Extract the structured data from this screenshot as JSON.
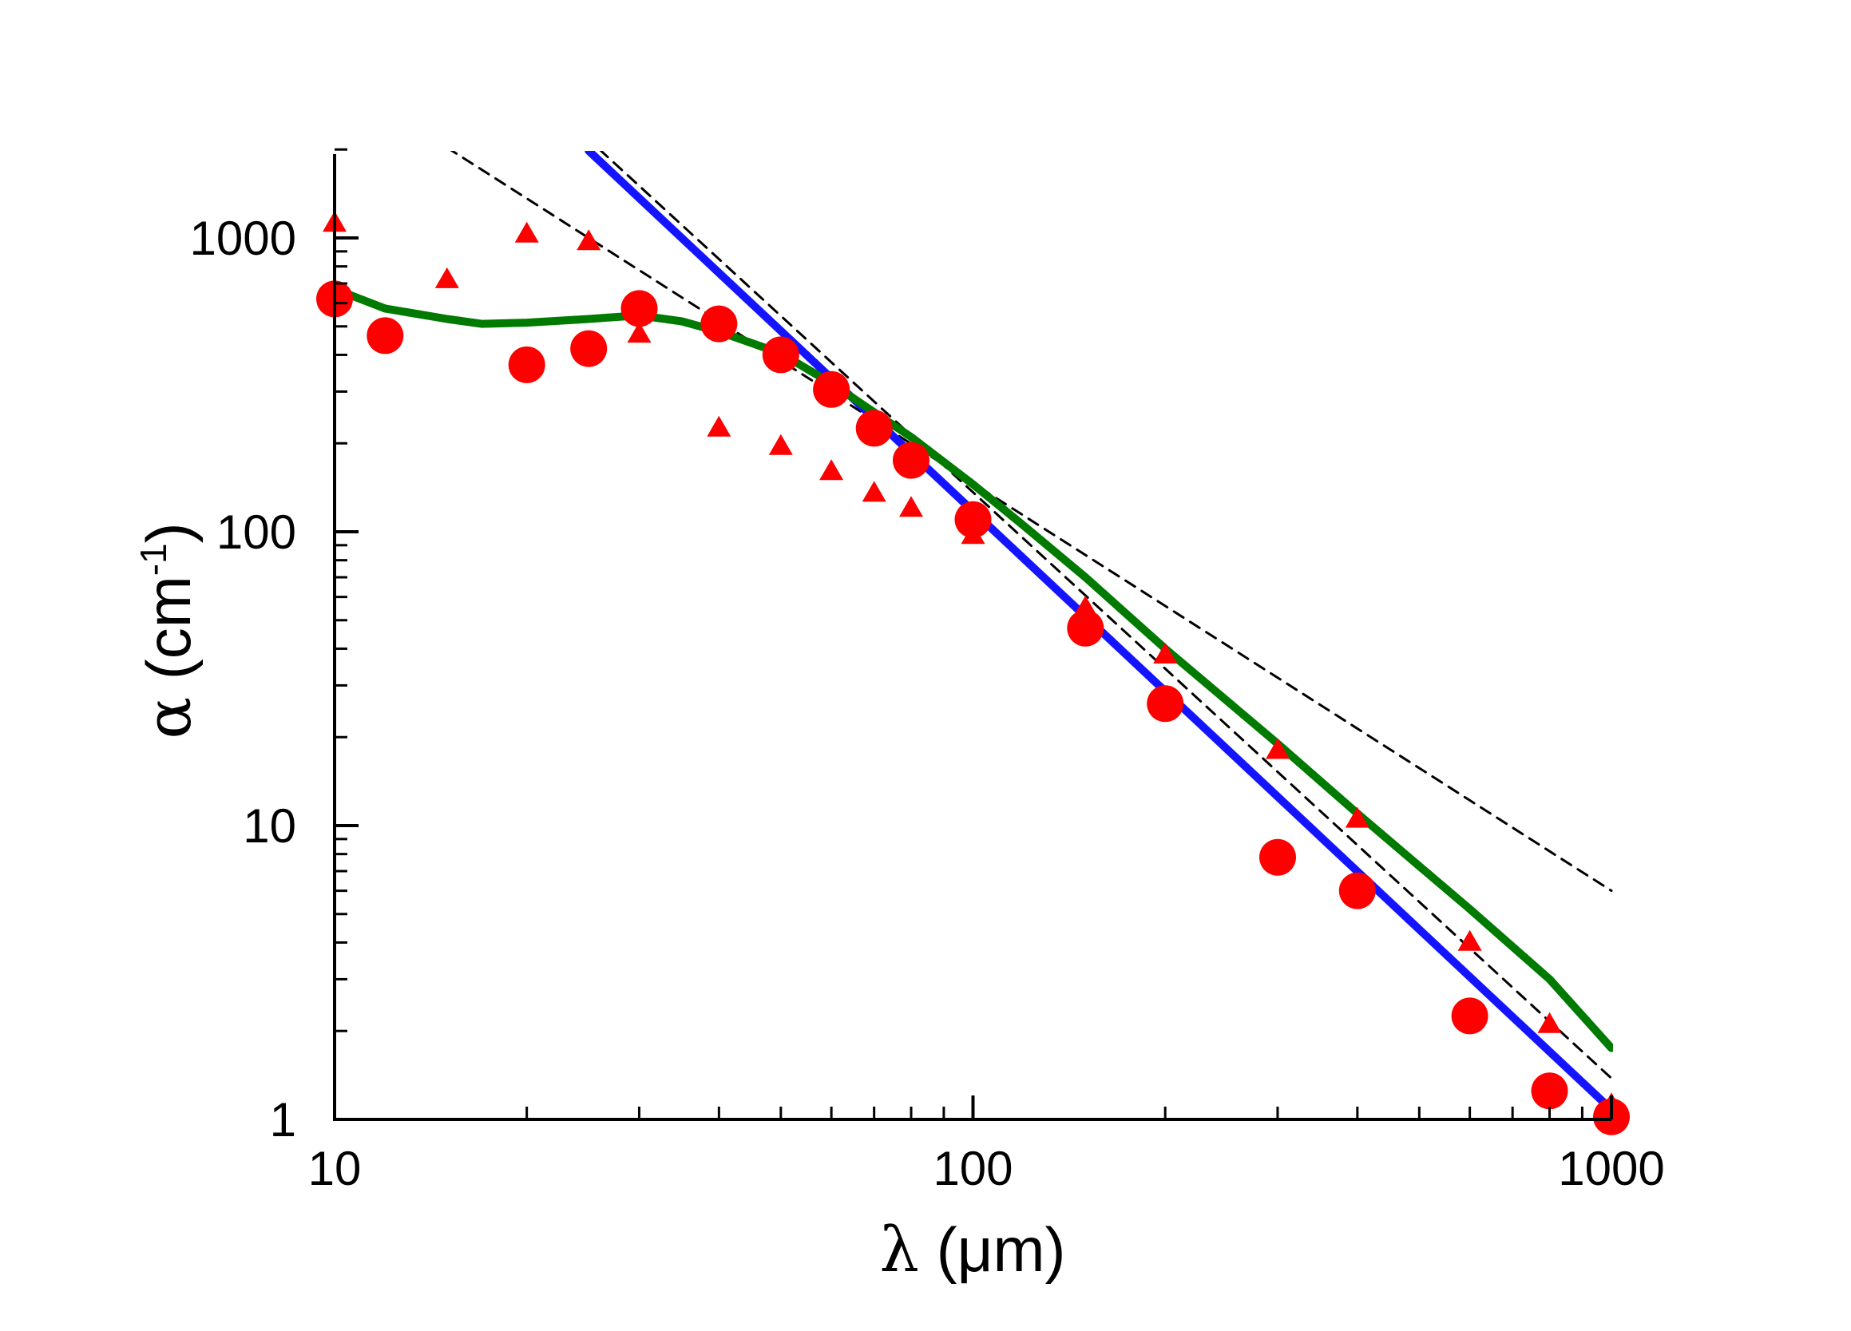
{
  "chart_data": {
    "type": "scatter",
    "title": "",
    "xscale": "log",
    "yscale": "log",
    "xlim": [
      10,
      1000
    ],
    "ylim": [
      1,
      2000
    ],
    "xlabel": {
      "symbol": "λ",
      "unit_open": " (",
      "unit": "μm",
      "unit_close": ")"
    },
    "ylabel": {
      "symbol": "α",
      "unit_open": " (",
      "unit": "cm",
      "unit_exp": "-1",
      "unit_close": ")"
    },
    "xticks": [
      {
        "value": 10,
        "label": "10"
      },
      {
        "value": 100,
        "label": "100"
      },
      {
        "value": 1000,
        "label": "1000"
      }
    ],
    "yticks": [
      {
        "value": 1,
        "label": "1"
      },
      {
        "value": 10,
        "label": "10"
      },
      {
        "value": 100,
        "label": "100"
      },
      {
        "value": 1000,
        "label": "1000"
      }
    ],
    "grid": false,
    "legend": "none",
    "colors": {
      "points": "#ff0000",
      "green": "#007a00",
      "blue": "#1414ff",
      "dashed": "#000000",
      "axis": "#000000"
    },
    "series": [
      {
        "name": "circles",
        "kind": "scatter",
        "marker": "circle",
        "x": [
          10,
          12,
          20,
          25,
          30,
          40,
          50,
          60,
          70,
          80,
          100,
          150,
          200,
          300,
          400,
          600,
          800,
          1000
        ],
        "y": [
          620,
          465,
          370,
          420,
          575,
          510,
          400,
          305,
          225,
          175,
          110,
          47,
          26,
          7.8,
          6.0,
          2.25,
          1.25,
          1.02
        ]
      },
      {
        "name": "triangles",
        "kind": "scatter",
        "marker": "triangle",
        "x": [
          10,
          15,
          20,
          25,
          30,
          40,
          50,
          60,
          70,
          80,
          100,
          150,
          200,
          300,
          400,
          600,
          800,
          1000
        ],
        "y": [
          1120,
          720,
          1030,
          970,
          470,
          225,
          195,
          160,
          135,
          120,
          97,
          55,
          38,
          18,
          10.5,
          4.0,
          2.1,
          1.12
        ]
      },
      {
        "name": "green-curve",
        "kind": "line",
        "x": [
          10,
          12,
          15,
          17,
          20,
          25,
          30,
          35,
          40,
          50,
          60,
          70,
          80,
          100,
          120,
          150,
          200,
          300,
          400,
          600,
          800,
          1000
        ],
        "y": [
          670,
          575,
          530,
          510,
          515,
          530,
          545,
          520,
          480,
          405,
          320,
          255,
          210,
          145,
          105,
          70,
          40,
          19,
          11,
          5.2,
          3.0,
          1.75
        ]
      },
      {
        "name": "blue-line",
        "kind": "line",
        "x": [
          25,
          1000
        ],
        "y": [
          1980,
          1.08
        ]
      },
      {
        "name": "dashed-line-1",
        "kind": "line",
        "dash": true,
        "x": [
          15,
          1000
        ],
        "y": [
          2030,
          6.0
        ]
      },
      {
        "name": "dashed-line-2",
        "kind": "line",
        "dash": true,
        "x": [
          26,
          1000
        ],
        "y": [
          2000,
          1.38
        ]
      }
    ]
  }
}
